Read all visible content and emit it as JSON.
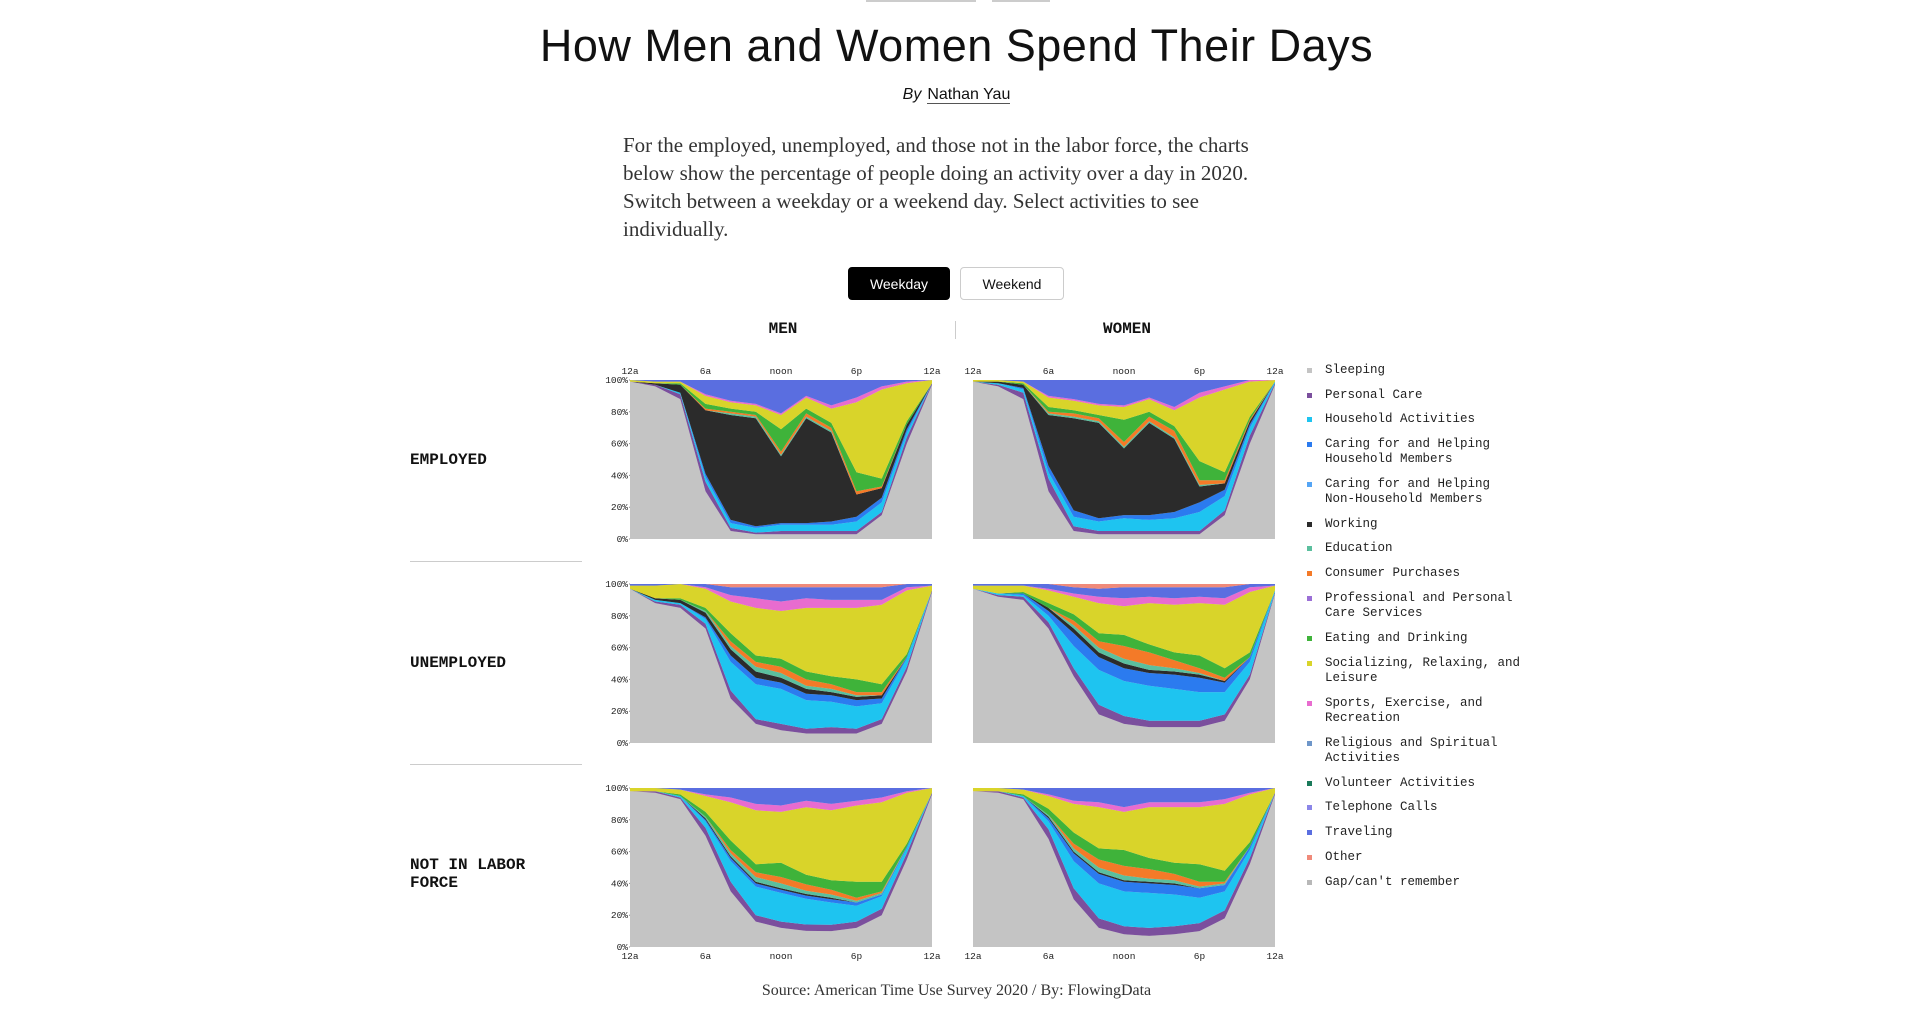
{
  "title": "How Men and Women Spend Their Days",
  "byline": {
    "prefix": "By",
    "author": "Nathan Yau"
  },
  "intro": "For the employed, unemployed, and those not in the labor force, the charts below show the percentage of people doing an activity over a day in 2020. Switch between a weekday or a weekend day. Select activities to see individually.",
  "toggle": {
    "selected": "Weekday",
    "options": [
      "Weekday",
      "Weekend"
    ]
  },
  "columns": [
    "MEN",
    "WOMEN"
  ],
  "rows": [
    "EMPLOYED",
    "UNEMPLOYED",
    "NOT IN LABOR FORCE"
  ],
  "legend": [
    {
      "label": "Sleeping",
      "color": "#c4c4c4"
    },
    {
      "label": "Personal Care",
      "color": "#7b4f9d"
    },
    {
      "label": "Household Activities",
      "color": "#1ec4f0"
    },
    {
      "label": "Caring for and Helping Household Members",
      "color": "#2b7bef"
    },
    {
      "label": "Caring for and Helping Non-Household Members",
      "color": "#55a5f5"
    },
    {
      "label": "Working",
      "color": "#2b2b2b"
    },
    {
      "label": "Education",
      "color": "#5bbf9e"
    },
    {
      "label": "Consumer Purchases",
      "color": "#f47a28"
    },
    {
      "label": "Professional and Personal Care Services",
      "color": "#9b6fd6"
    },
    {
      "label": "Eating and Drinking",
      "color": "#3fb33a"
    },
    {
      "label": "Socializing, Relaxing, and Leisure",
      "color": "#d9d42a"
    },
    {
      "label": "Sports, Exercise, and Recreation",
      "color": "#e86ccf"
    },
    {
      "label": "Religious and Spiritual Activities",
      "color": "#6e96c9"
    },
    {
      "label": "Volunteer Activities",
      "color": "#1a7a5a"
    },
    {
      "label": "Telephone Calls",
      "color": "#8b86e8"
    },
    {
      "label": "Traveling",
      "color": "#5a6ee0"
    },
    {
      "label": "Other",
      "color": "#f08a7a"
    },
    {
      "label": "Gap/can't remember",
      "color": "#b8b8b8"
    }
  ],
  "chart_data": {
    "type": "area",
    "stacked": true,
    "normalized": true,
    "x_hours": [
      0,
      2,
      4,
      6,
      8,
      10,
      12,
      14,
      16,
      18,
      20,
      22,
      24
    ],
    "x_tick_labels": [
      "12a",
      "6a",
      "noon",
      "6p",
      "12a"
    ],
    "x_tick_hours": [
      0,
      6,
      12,
      18,
      24
    ],
    "y_tick_labels": [
      "100%",
      "80%",
      "60%",
      "40%",
      "20%",
      "0%"
    ],
    "y_tick_values": [
      100,
      80,
      60,
      40,
      20,
      0
    ],
    "ylim": [
      0,
      100
    ],
    "activities": [
      "Sleeping",
      "Personal Care",
      "Household Activities",
      "Caring for and Helping Household Members",
      "Working",
      "Education",
      "Consumer Purchases",
      "Eating and Drinking",
      "Socializing, Relaxing, and Leisure",
      "Sports, Exercise, and Recreation",
      "Traveling",
      "Other"
    ],
    "panels": [
      {
        "row": "EMPLOYED",
        "column": "MEN",
        "series": [
          [
            99,
            96,
            88,
            30,
            5,
            3,
            3,
            3,
            3,
            3,
            15,
            60,
            97
          ],
          [
            0,
            1,
            3,
            6,
            2,
            1,
            2,
            2,
            2,
            2,
            2,
            4,
            1
          ],
          [
            0,
            0,
            1,
            3,
            3,
            3,
            4,
            4,
            4,
            6,
            6,
            3,
            0
          ],
          [
            0,
            0,
            0,
            2,
            2,
            1,
            1,
            1,
            2,
            3,
            3,
            2,
            0
          ],
          [
            0,
            1,
            5,
            40,
            66,
            68,
            42,
            66,
            56,
            14,
            6,
            3,
            0
          ],
          [
            0,
            0,
            0,
            0,
            1,
            1,
            1,
            1,
            1,
            0,
            0,
            0,
            0
          ],
          [
            0,
            0,
            0,
            1,
            1,
            1,
            2,
            2,
            2,
            2,
            1,
            0,
            0
          ],
          [
            0,
            0,
            1,
            3,
            2,
            2,
            14,
            3,
            3,
            12,
            5,
            2,
            0
          ],
          [
            1,
            1,
            1,
            5,
            4,
            4,
            9,
            7,
            9,
            44,
            56,
            24,
            2
          ],
          [
            0,
            0,
            0,
            1,
            1,
            1,
            1,
            1,
            2,
            3,
            2,
            1,
            0
          ],
          [
            0,
            1,
            1,
            9,
            13,
            15,
            21,
            10,
            16,
            11,
            4,
            1,
            0
          ],
          [
            0,
            0,
            0,
            0,
            0,
            0,
            0,
            0,
            0,
            0,
            0,
            0,
            0
          ]
        ]
      },
      {
        "row": "EMPLOYED",
        "column": "WOMEN",
        "series": [
          [
            99,
            96,
            88,
            30,
            5,
            3,
            3,
            3,
            3,
            3,
            15,
            60,
            97
          ],
          [
            0,
            1,
            4,
            8,
            3,
            2,
            2,
            2,
            2,
            2,
            3,
            5,
            1
          ],
          [
            0,
            1,
            2,
            4,
            6,
            6,
            8,
            7,
            8,
            12,
            9,
            5,
            1
          ],
          [
            0,
            0,
            1,
            4,
            4,
            2,
            2,
            3,
            4,
            6,
            4,
            2,
            0
          ],
          [
            0,
            1,
            2,
            32,
            58,
            60,
            42,
            58,
            46,
            10,
            4,
            2,
            0
          ],
          [
            0,
            0,
            0,
            1,
            1,
            1,
            1,
            1,
            1,
            1,
            0,
            0,
            0
          ],
          [
            0,
            0,
            0,
            1,
            2,
            2,
            3,
            3,
            4,
            3,
            2,
            1,
            0
          ],
          [
            0,
            0,
            1,
            3,
            2,
            2,
            14,
            3,
            3,
            12,
            5,
            2,
            0
          ],
          [
            1,
            1,
            1,
            6,
            6,
            6,
            8,
            8,
            10,
            40,
            52,
            22,
            1
          ],
          [
            0,
            0,
            0,
            1,
            1,
            1,
            1,
            1,
            2,
            3,
            2,
            1,
            0
          ],
          [
            0,
            0,
            1,
            10,
            12,
            15,
            16,
            11,
            17,
            8,
            4,
            0,
            0
          ],
          [
            0,
            0,
            0,
            0,
            0,
            0,
            0,
            0,
            0,
            0,
            0,
            0,
            0
          ]
        ]
      },
      {
        "row": "UNEMPLOYED",
        "column": "MEN",
        "series": [
          [
            97,
            88,
            85,
            72,
            28,
            12,
            8,
            6,
            6,
            6,
            12,
            45,
            95
          ],
          [
            0,
            1,
            2,
            3,
            5,
            3,
            4,
            3,
            4,
            3,
            3,
            3,
            1
          ],
          [
            0,
            1,
            1,
            3,
            18,
            22,
            22,
            18,
            16,
            14,
            10,
            5,
            0
          ],
          [
            0,
            0,
            0,
            1,
            4,
            4,
            4,
            4,
            4,
            4,
            3,
            1,
            0
          ],
          [
            0,
            1,
            2,
            3,
            4,
            4,
            3,
            3,
            2,
            2,
            2,
            0,
            0
          ],
          [
            0,
            0,
            0,
            1,
            2,
            3,
            3,
            2,
            2,
            1,
            0,
            0,
            0
          ],
          [
            0,
            0,
            0,
            0,
            3,
            3,
            4,
            4,
            3,
            2,
            2,
            0,
            0
          ],
          [
            0,
            0,
            1,
            2,
            5,
            4,
            5,
            5,
            5,
            8,
            5,
            2,
            0
          ],
          [
            2,
            8,
            9,
            12,
            20,
            30,
            30,
            40,
            43,
            45,
            50,
            40,
            3
          ],
          [
            0,
            0,
            0,
            1,
            4,
            6,
            6,
            6,
            5,
            5,
            3,
            2,
            0
          ],
          [
            1,
            1,
            0,
            2,
            5,
            7,
            9,
            7,
            8,
            8,
            8,
            2,
            1
          ],
          [
            0,
            0,
            0,
            0,
            2,
            2,
            2,
            2,
            2,
            2,
            2,
            0,
            0
          ]
        ]
      },
      {
        "row": "UNEMPLOYED",
        "column": "WOMEN",
        "series": [
          [
            97,
            92,
            90,
            72,
            42,
            18,
            12,
            10,
            10,
            10,
            14,
            40,
            94
          ],
          [
            0,
            1,
            2,
            4,
            5,
            6,
            5,
            4,
            4,
            4,
            4,
            3,
            1
          ],
          [
            0,
            1,
            1,
            4,
            14,
            22,
            22,
            22,
            20,
            18,
            14,
            8,
            1
          ],
          [
            0,
            0,
            1,
            3,
            8,
            8,
            8,
            8,
            9,
            9,
            6,
            3,
            0
          ],
          [
            0,
            0,
            0,
            2,
            3,
            3,
            3,
            2,
            2,
            2,
            1,
            0,
            0
          ],
          [
            0,
            0,
            0,
            0,
            2,
            3,
            3,
            3,
            2,
            1,
            0,
            0,
            0
          ],
          [
            0,
            0,
            0,
            0,
            3,
            4,
            8,
            8,
            5,
            3,
            2,
            0,
            0
          ],
          [
            0,
            0,
            1,
            3,
            4,
            5,
            7,
            5,
            5,
            8,
            6,
            3,
            0
          ],
          [
            2,
            5,
            4,
            8,
            11,
            19,
            18,
            26,
            30,
            33,
            40,
            38,
            3
          ],
          [
            0,
            0,
            0,
            1,
            2,
            4,
            5,
            4,
            4,
            4,
            4,
            3,
            0
          ],
          [
            1,
            1,
            1,
            3,
            4,
            5,
            7,
            6,
            7,
            6,
            7,
            2,
            1
          ],
          [
            0,
            0,
            0,
            0,
            2,
            3,
            2,
            2,
            2,
            2,
            2,
            0,
            0
          ]
        ]
      },
      {
        "row": "NOT IN LABOR FORCE",
        "column": "MEN",
        "series": [
          [
            98,
            97,
            93,
            70,
            35,
            16,
            12,
            10,
            10,
            12,
            20,
            55,
            96
          ],
          [
            0,
            1,
            1,
            5,
            6,
            4,
            4,
            4,
            4,
            4,
            4,
            4,
            1
          ],
          [
            0,
            0,
            1,
            4,
            13,
            18,
            18,
            16,
            14,
            10,
            8,
            3,
            0
          ],
          [
            0,
            0,
            0,
            1,
            2,
            2,
            2,
            2,
            2,
            2,
            1,
            1,
            0
          ],
          [
            0,
            0,
            0,
            1,
            1,
            1,
            1,
            1,
            1,
            0,
            0,
            0,
            0
          ],
          [
            0,
            0,
            0,
            1,
            2,
            3,
            3,
            2,
            2,
            1,
            1,
            0,
            0
          ],
          [
            0,
            0,
            0,
            0,
            2,
            3,
            4,
            4,
            3,
            2,
            1,
            0,
            0
          ],
          [
            0,
            0,
            1,
            3,
            6,
            5,
            9,
            6,
            6,
            10,
            6,
            2,
            0
          ],
          [
            2,
            2,
            3,
            10,
            24,
            34,
            32,
            42,
            44,
            48,
            50,
            32,
            3
          ],
          [
            0,
            0,
            0,
            1,
            3,
            4,
            4,
            4,
            4,
            3,
            3,
            1,
            0
          ],
          [
            0,
            0,
            1,
            4,
            6,
            10,
            11,
            8,
            10,
            8,
            6,
            2,
            0
          ],
          [
            0,
            0,
            0,
            0,
            0,
            0,
            0,
            0,
            0,
            0,
            0,
            0,
            0
          ]
        ]
      },
      {
        "row": "NOT IN LABOR FORCE",
        "column": "WOMEN",
        "series": [
          [
            98,
            97,
            93,
            68,
            30,
            12,
            8,
            7,
            8,
            10,
            18,
            52,
            96
          ],
          [
            0,
            1,
            1,
            6,
            7,
            6,
            5,
            5,
            5,
            5,
            5,
            4,
            1
          ],
          [
            0,
            0,
            1,
            5,
            17,
            22,
            22,
            22,
            20,
            16,
            12,
            5,
            0
          ],
          [
            0,
            0,
            0,
            2,
            5,
            6,
            6,
            6,
            6,
            6,
            4,
            2,
            0
          ],
          [
            0,
            0,
            0,
            1,
            1,
            1,
            1,
            1,
            1,
            0,
            0,
            0,
            0
          ],
          [
            0,
            0,
            0,
            1,
            2,
            3,
            3,
            2,
            2,
            1,
            1,
            0,
            0
          ],
          [
            0,
            0,
            0,
            0,
            3,
            5,
            6,
            6,
            4,
            3,
            1,
            0,
            0
          ],
          [
            0,
            0,
            1,
            4,
            7,
            7,
            10,
            7,
            7,
            11,
            7,
            3,
            0
          ],
          [
            2,
            2,
            3,
            8,
            18,
            26,
            24,
            32,
            35,
            36,
            42,
            30,
            3
          ],
          [
            0,
            0,
            0,
            1,
            2,
            3,
            3,
            3,
            3,
            3,
            3,
            1,
            0
          ],
          [
            0,
            0,
            1,
            4,
            8,
            9,
            12,
            9,
            9,
            9,
            7,
            3,
            0
          ],
          [
            0,
            0,
            0,
            0,
            0,
            0,
            0,
            0,
            0,
            0,
            0,
            0,
            0
          ]
        ]
      }
    ],
    "colors": [
      "#c4c4c4",
      "#7b4f9d",
      "#1ec4f0",
      "#2b7bef",
      "#2b2b2b",
      "#5bbf9e",
      "#f47a28",
      "#3fb33a",
      "#d9d42a",
      "#e86ccf",
      "#5a6ee0",
      "#f08a7a"
    ]
  },
  "source": "Source: American Time Use Survey 2020 / By: FlowingData"
}
